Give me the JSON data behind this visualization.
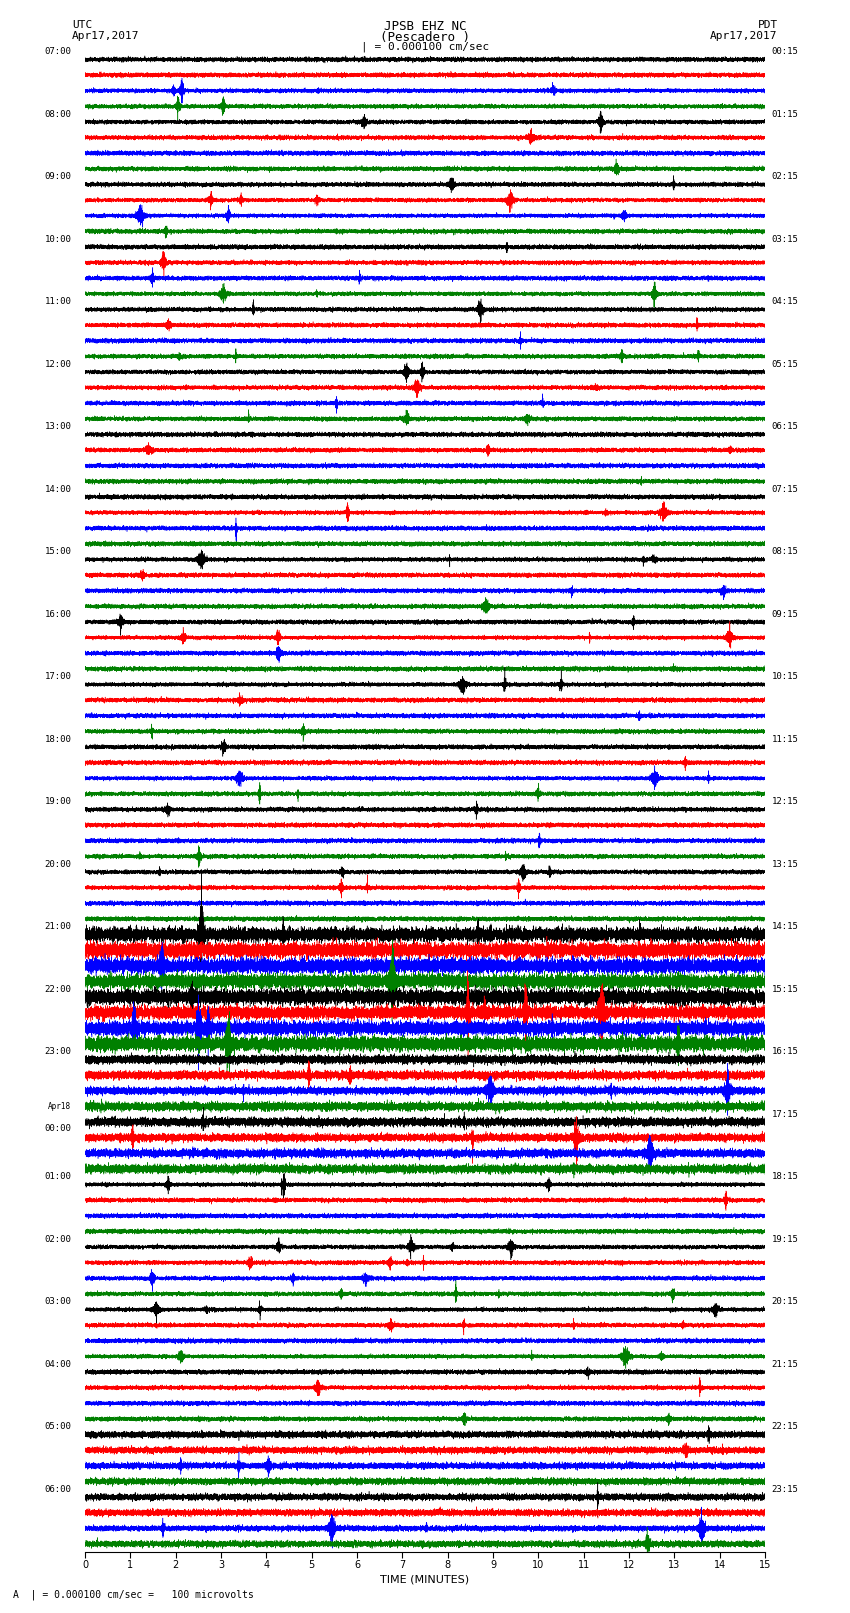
{
  "title_line1": "JPSB EHZ NC",
  "title_line2": "(Pescadero )",
  "scale_label": "| = 0.000100 cm/sec",
  "utc_label": "UTC",
  "pdt_label": "PDT",
  "date_left": "Apr17,2017",
  "date_right": "Apr17,2017",
  "bottom_label": "A  | = 0.000100 cm/sec =   100 microvolts",
  "xlabel": "TIME (MINUTES)",
  "left_times": [
    "07:00",
    "08:00",
    "09:00",
    "10:00",
    "11:00",
    "12:00",
    "13:00",
    "14:00",
    "15:00",
    "16:00",
    "17:00",
    "18:00",
    "19:00",
    "20:00",
    "21:00",
    "22:00",
    "23:00",
    "Apr18\n00:00",
    "01:00",
    "02:00",
    "03:00",
    "04:00",
    "05:00",
    "06:00"
  ],
  "right_times": [
    "00:15",
    "01:15",
    "02:15",
    "03:15",
    "04:15",
    "05:15",
    "06:15",
    "07:15",
    "08:15",
    "09:15",
    "10:15",
    "11:15",
    "12:15",
    "13:15",
    "14:15",
    "15:15",
    "16:15",
    "17:15",
    "18:15",
    "19:15",
    "20:15",
    "21:15",
    "22:15",
    "23:15"
  ],
  "colors": [
    "black",
    "red",
    "blue",
    "green"
  ],
  "n_rows": 24,
  "traces_per_row": 4,
  "minutes": 15,
  "bg_color": "white",
  "fig_width": 8.5,
  "fig_height": 16.13
}
